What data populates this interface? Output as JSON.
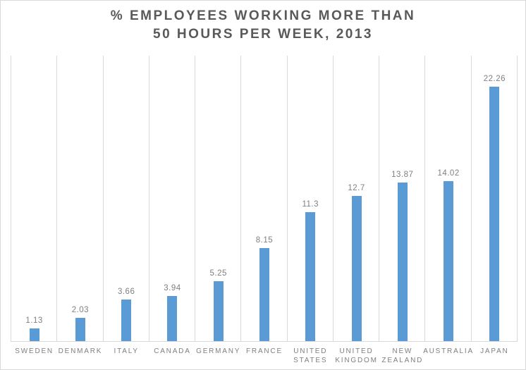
{
  "chart_data": {
    "type": "bar",
    "title": "% EMPLOYEES WORKING MORE THAN 50 HOURS PER WEEK, 2013",
    "title_lines": [
      "% EMPLOYEES WORKING MORE THAN",
      "50 HOURS PER WEEK, 2013"
    ],
    "categories": [
      "SWEDEN",
      "DENMARK",
      "ITALY",
      "CANADA",
      "GERMANY",
      "FRANCE",
      "UNITED STATES",
      "UNITED KINGDOM",
      "NEW ZEALAND",
      "AUSTRALIA",
      "JAPAN"
    ],
    "values": [
      1.13,
      2.03,
      3.66,
      3.94,
      5.25,
      8.15,
      11.3,
      12.7,
      13.87,
      14.02,
      22.26
    ],
    "value_labels": [
      "1.13",
      "2.03",
      "3.66",
      "3.94",
      "5.25",
      "8.15",
      "11.3",
      "12.7",
      "13.87",
      "14.02",
      "22.26"
    ],
    "xlabel": "",
    "ylabel": "",
    "ylim": [
      0,
      25
    ],
    "y_axis_labels_visible": false,
    "grid": "vertical category boundary lines",
    "legend_position": "none",
    "colors": {
      "bar": "#5b9bd5",
      "title": "#595959",
      "label": "#7f7f7f",
      "gridline": "#d9d9d9",
      "axis": "#d9d9d9",
      "border": "#d9d9d9",
      "background": "#ffffff"
    }
  }
}
